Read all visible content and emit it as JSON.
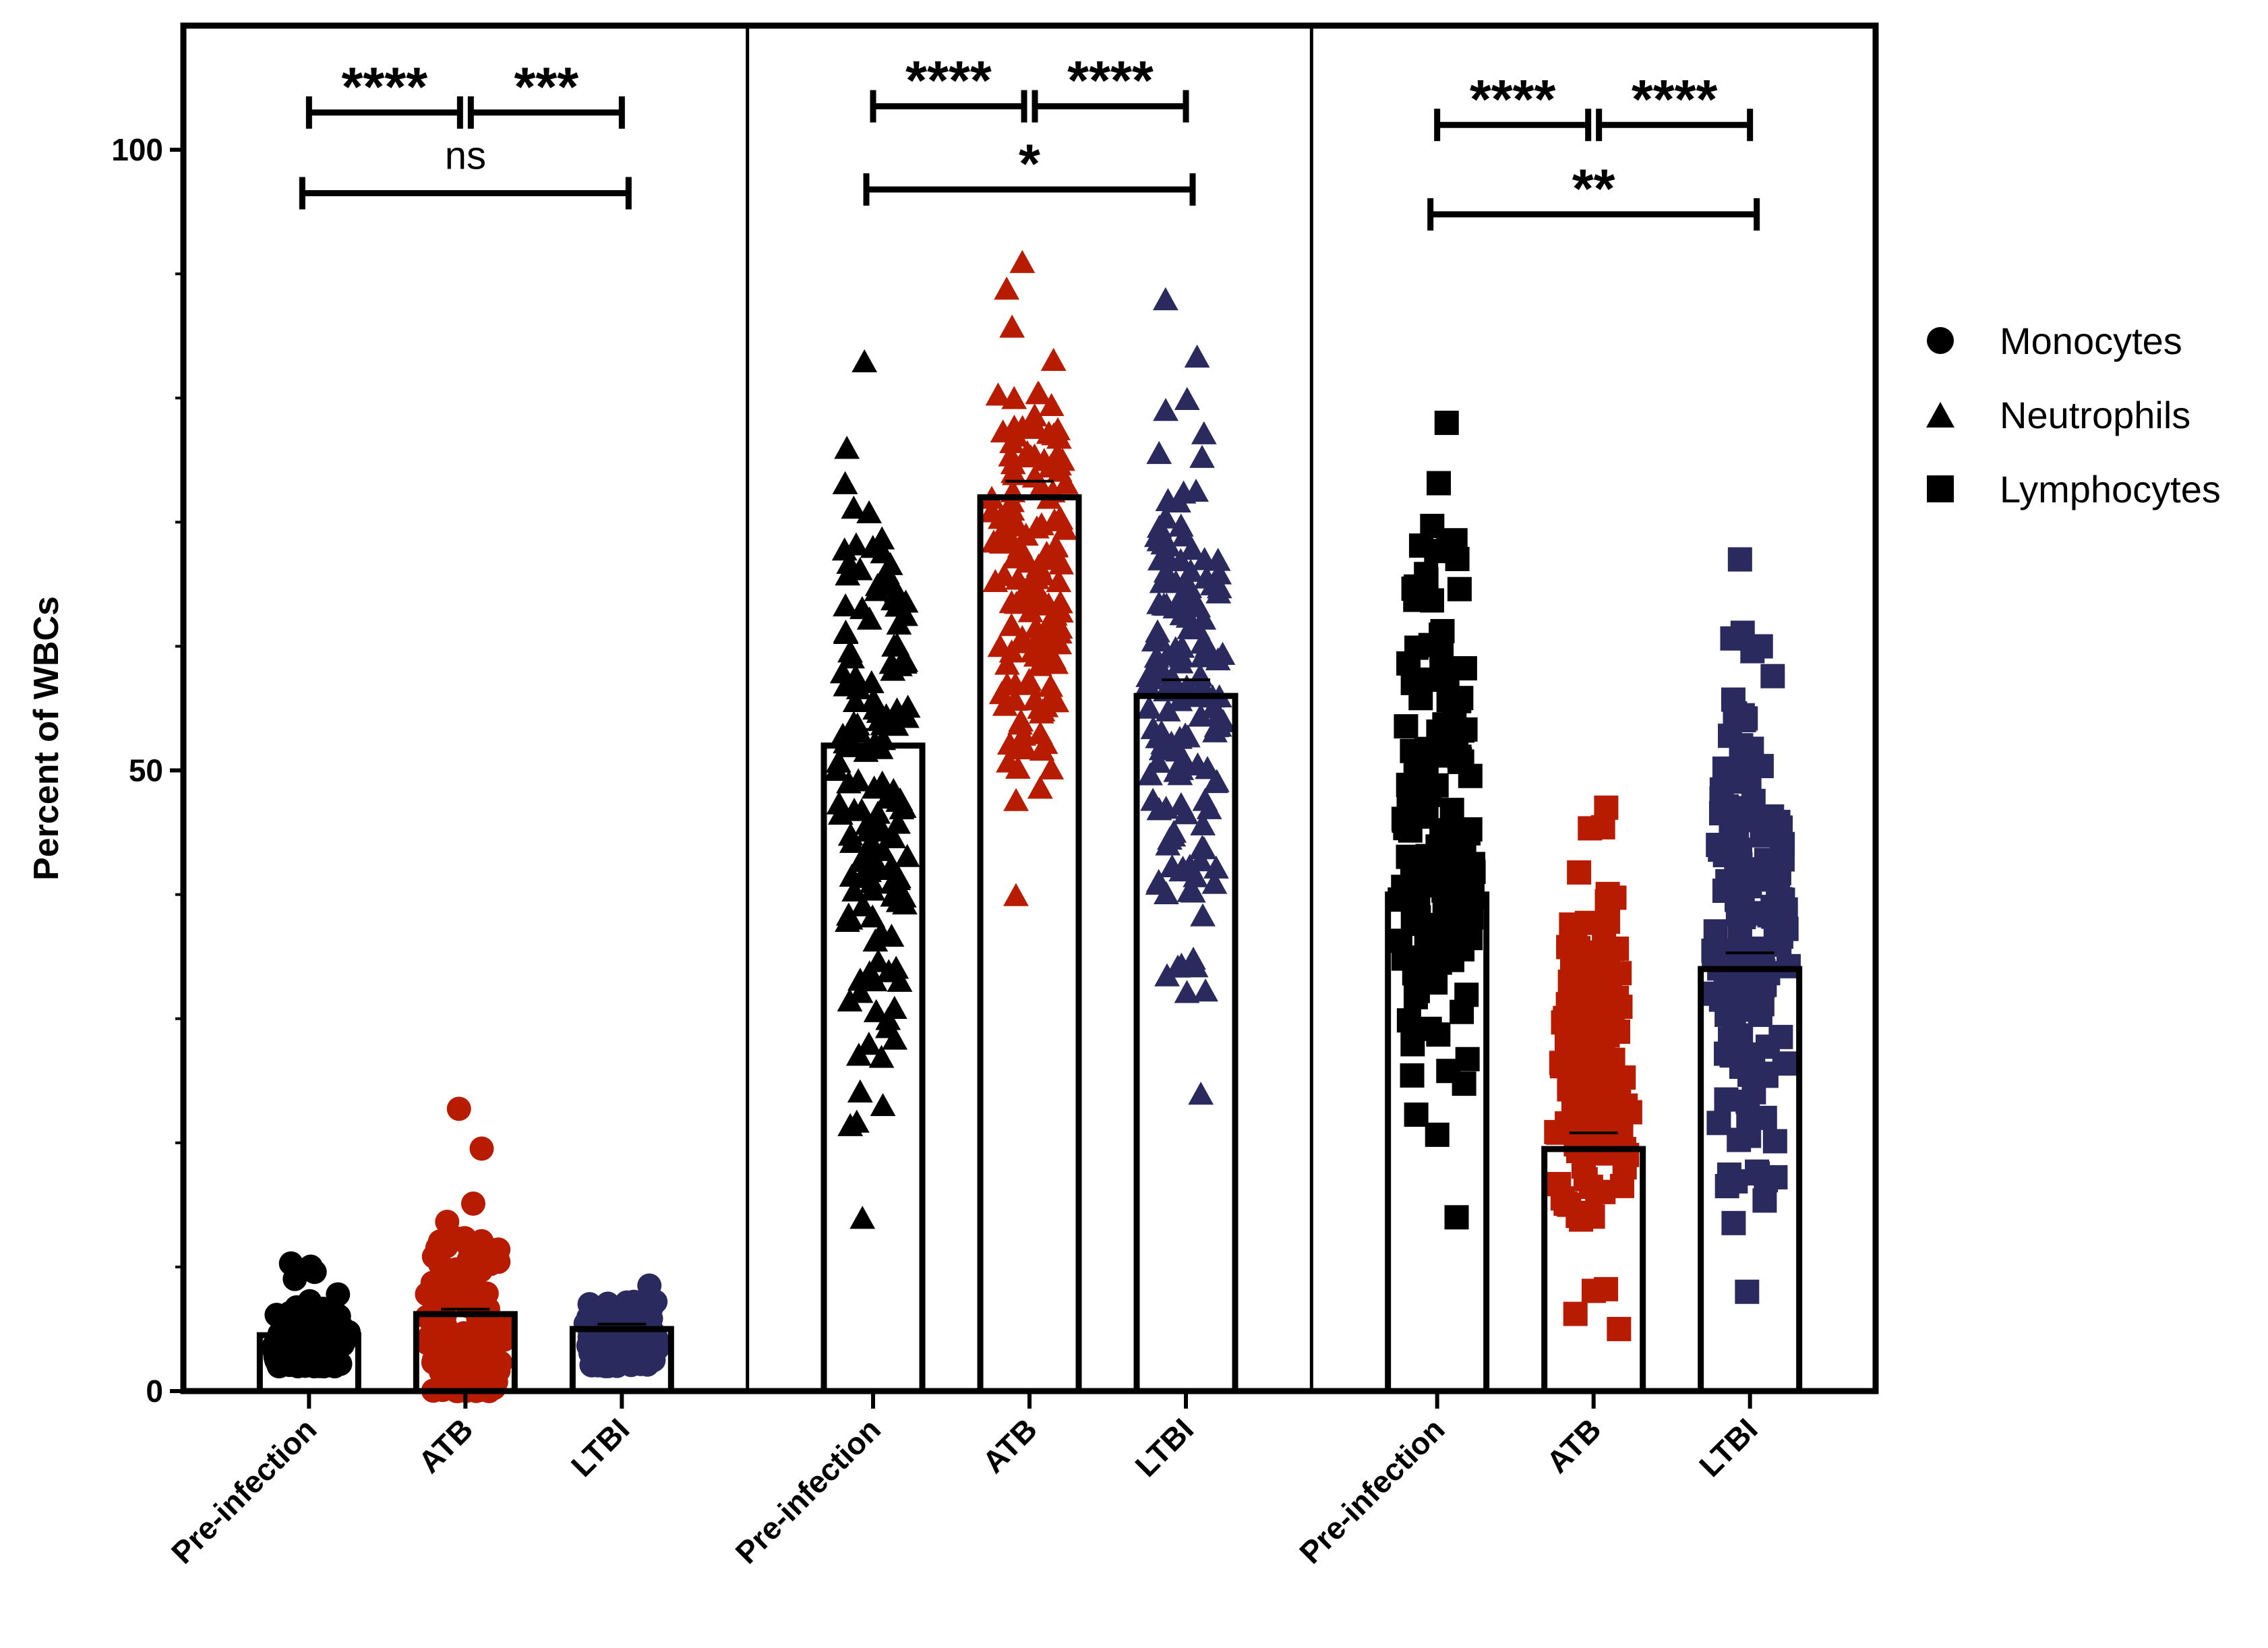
{
  "chart_data": {
    "type": "bar",
    "title": "",
    "xlabel": "",
    "ylabel": "Percent of WBCs",
    "ylim": [
      0,
      110
    ],
    "yticks": [
      "0",
      "50",
      "100"
    ],
    "categories": [
      "Pre-infection",
      "ATB",
      "LTBI"
    ],
    "series": [
      {
        "name": "Monocytes",
        "marker": "circle",
        "values": [
          4.5,
          6.2,
          5.0
        ]
      },
      {
        "name": "Neutrophils",
        "marker": "triangle",
        "values": [
          52,
          72,
          56
        ]
      },
      {
        "name": "Lymphocytes",
        "marker": "square",
        "values": [
          40,
          19.5,
          34
        ]
      }
    ],
    "group_colors": {
      "Pre-infection": "#000000",
      "ATB": "#b81c00",
      "LTBI": "#2a2a5e"
    },
    "point_ranges": {
      "Monocytes": [
        [
          2,
          11
        ],
        [
          0,
          23
        ],
        [
          2,
          11.5
        ]
      ],
      "Neutrophils": [
        [
          14,
          83
        ],
        [
          40,
          91
        ],
        [
          24,
          88
        ]
      ],
      "Lymphocytes": [
        [
          14,
          78
        ],
        [
          5,
          47
        ],
        [
          8,
          67
        ]
      ]
    },
    "comparisons": [
      {
        "panel": "Monocytes",
        "from": "Pre-infection",
        "to": "ATB",
        "label": "****"
      },
      {
        "panel": "Monocytes",
        "from": "ATB",
        "to": "LTBI",
        "label": "***"
      },
      {
        "panel": "Monocytes",
        "from": "Pre-infection",
        "to": "LTBI",
        "label": "ns"
      },
      {
        "panel": "Neutrophils",
        "from": "Pre-infection",
        "to": "ATB",
        "label": "****"
      },
      {
        "panel": "Neutrophils",
        "from": "ATB",
        "to": "LTBI",
        "label": "****"
      },
      {
        "panel": "Neutrophils",
        "from": "Pre-infection",
        "to": "LTBI",
        "label": "*"
      },
      {
        "panel": "Lymphocytes",
        "from": "Pre-infection",
        "to": "ATB",
        "label": "****"
      },
      {
        "panel": "Lymphocytes",
        "from": "ATB",
        "to": "LTBI",
        "label": "****"
      },
      {
        "panel": "Lymphocytes",
        "from": "Pre-infection",
        "to": "LTBI",
        "label": "**"
      }
    ],
    "legend": [
      {
        "label": "Monocytes",
        "marker": "circle"
      },
      {
        "label": "Neutrophils",
        "marker": "triangle"
      },
      {
        "label": "Lymphocytes",
        "marker": "square"
      }
    ],
    "legend_position": "right"
  }
}
